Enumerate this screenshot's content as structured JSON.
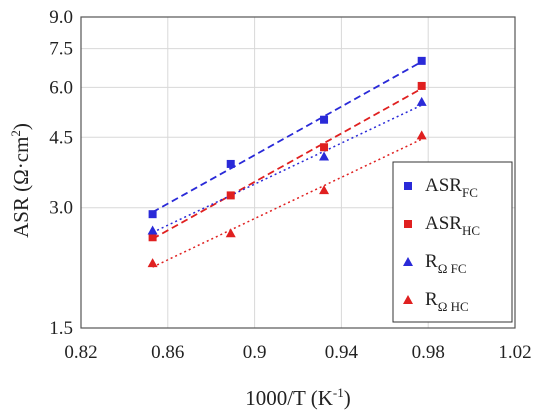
{
  "chart_data": {
    "type": "scatter",
    "xlabel": {
      "text": "1000/T (K",
      "sup": "-1",
      "suffix": ")"
    },
    "ylabel": {
      "text": "ASR (Ω·cm",
      "sup": "2",
      "suffix": ")"
    },
    "xlim": [
      0.82,
      1.02
    ],
    "ylim": [
      1.5,
      9.0
    ],
    "yscale": "log",
    "xticks": [
      {
        "value": 0.82,
        "label": "0.82"
      },
      {
        "value": 0.86,
        "label": "0.86"
      },
      {
        "value": 0.9,
        "label": "0.9"
      },
      {
        "value": 0.94,
        "label": "0.94"
      },
      {
        "value": 0.98,
        "label": "0.98"
      },
      {
        "value": 1.02,
        "label": "1.02"
      }
    ],
    "yticks": [
      {
        "value": 1.5,
        "label": "1.5"
      },
      {
        "value": 3.0,
        "label": "3.0"
      },
      {
        "value": 4.5,
        "label": "4.5"
      },
      {
        "value": 6.0,
        "label": "6.0"
      },
      {
        "value": 7.5,
        "label": "7.5"
      },
      {
        "value": 9.0,
        "label": "9.0"
      }
    ],
    "grid": true,
    "legend_position": "right",
    "series": [
      {
        "name": "ASR",
        "sub": "FC",
        "marker": "square",
        "color": "#2a2ad8",
        "line": "dashed",
        "x": [
          0.853,
          0.889,
          0.932,
          0.977
        ],
        "y": [
          2.89,
          3.86,
          4.98,
          6.99
        ]
      },
      {
        "name": "ASR",
        "sub": "HC",
        "marker": "square",
        "color": "#e02020",
        "line": "dashed",
        "x": [
          0.853,
          0.889,
          0.932,
          0.977
        ],
        "y": [
          2.53,
          3.22,
          4.25,
          6.05
        ]
      },
      {
        "name": "R",
        "sub": "Ω FC",
        "marker": "triangle",
        "color": "#2a2ad8",
        "line": "dotted",
        "x": [
          0.853,
          0.932,
          0.977
        ],
        "y": [
          2.63,
          4.03,
          5.52
        ]
      },
      {
        "name": "R",
        "sub": "Ω HC",
        "marker": "triangle",
        "color": "#e02020",
        "line": "dotted",
        "x": [
          0.853,
          0.889,
          0.932,
          0.977
        ],
        "y": [
          2.18,
          2.59,
          3.32,
          4.55
        ]
      }
    ]
  }
}
